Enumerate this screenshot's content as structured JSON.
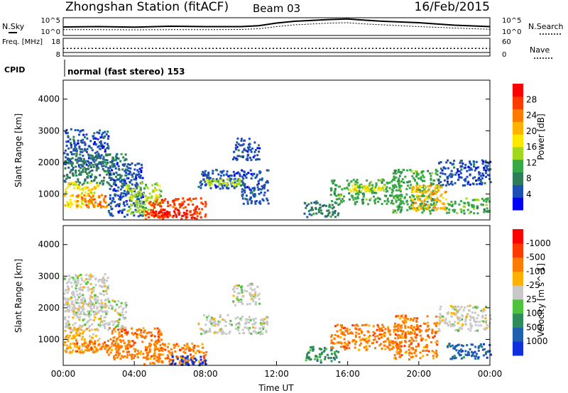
{
  "header": {
    "title": "Zhongshan Station (fitACF)",
    "beam": "Beam 03",
    "date": "16/Feb/2015",
    "cpid_label": "CPID",
    "cpid_value": "normal (fast stereo) 153"
  },
  "chart_data": [
    {
      "id": "noise",
      "type": "line",
      "left_label": "N.Sky",
      "right_label": "N.Search",
      "left_ticks": [
        "10^5",
        "10^0"
      ],
      "right_ticks": [
        "10^5",
        "10^0"
      ],
      "series": [
        {
          "name": "N.Sky",
          "x": [
            0,
            2,
            4,
            6,
            8,
            10,
            11,
            12,
            13,
            14,
            15,
            16,
            17,
            18,
            20,
            22,
            24
          ],
          "y": [
            0.48,
            0.5,
            0.47,
            0.52,
            0.5,
            0.5,
            0.55,
            0.7,
            0.8,
            0.85,
            0.9,
            0.93,
            0.86,
            0.8,
            0.72,
            0.58,
            0.5
          ]
        },
        {
          "name": "N.Search",
          "x": [
            0,
            2,
            4,
            6,
            8,
            10,
            11,
            12,
            13,
            14,
            15,
            16,
            17,
            18,
            20,
            22,
            24
          ],
          "y": [
            0.33,
            0.33,
            0.32,
            0.33,
            0.33,
            0.34,
            0.38,
            0.5,
            0.6,
            0.65,
            0.7,
            0.72,
            0.65,
            0.6,
            0.5,
            0.42,
            0.35
          ]
        }
      ]
    },
    {
      "id": "freq",
      "type": "line",
      "left_label": "Freq. [MHz]",
      "right_label": "Nave",
      "left_ticks": [
        "18",
        "8"
      ],
      "right_ticks": [
        "60",
        "0"
      ],
      "series": [
        {
          "name": "Freq.",
          "x": [
            0,
            24
          ],
          "y": [
            10,
            10
          ]
        },
        {
          "name": "Nave",
          "x": [
            0,
            24
          ],
          "y": [
            26,
            26
          ]
        }
      ]
    },
    {
      "id": "power",
      "type": "heatmap",
      "title": "",
      "xlabel": "",
      "ylabel": "Slant Range [km]",
      "xlim": [
        0,
        24
      ],
      "ylim": [
        180,
        4600
      ],
      "y_ticks": [
        "1000",
        "2000",
        "3000",
        "4000"
      ],
      "colorbar": {
        "label": "Power [dB]",
        "ticks": [
          "4",
          "8",
          "12",
          "16",
          "20",
          "24",
          "28"
        ],
        "colors": [
          "#0000ff",
          "#1e4fb4",
          "#2e7d5a",
          "#37a845",
          "#a2d81c",
          "#ffe800",
          "#ffb300",
          "#ff7a00",
          "#ff3a00",
          "#ff0000"
        ]
      },
      "regions": [
        {
          "t": [
            0.0,
            2.5
          ],
          "r": [
            1800,
            3100
          ],
          "c": 1
        },
        {
          "t": [
            0.0,
            3.5
          ],
          "r": [
            1300,
            2300
          ],
          "c": 2
        },
        {
          "t": [
            0.0,
            2.0
          ],
          "r": [
            600,
            1400
          ],
          "c": 5
        },
        {
          "t": [
            0.5,
            2.5
          ],
          "r": [
            600,
            1000
          ],
          "c": 7
        },
        {
          "t": [
            2.5,
            4.5
          ],
          "r": [
            300,
            2000
          ],
          "c": 1
        },
        {
          "t": [
            3.5,
            5.5
          ],
          "r": [
            400,
            1400
          ],
          "c": 4
        },
        {
          "t": [
            4.5,
            8.0
          ],
          "r": [
            250,
            900
          ],
          "c": 8
        },
        {
          "t": [
            5.0,
            7.0
          ],
          "r": [
            300,
            550
          ],
          "c": 9
        },
        {
          "t": [
            7.5,
            11.5
          ],
          "r": [
            1200,
            1800
          ],
          "c": 1
        },
        {
          "t": [
            8.0,
            10.0
          ],
          "r": [
            1300,
            1500
          ],
          "c": 4
        },
        {
          "t": [
            9.5,
            11.0
          ],
          "r": [
            2100,
            2800
          ],
          "c": 1
        },
        {
          "t": [
            10.0,
            11.5
          ],
          "r": [
            700,
            1300
          ],
          "c": 1
        },
        {
          "t": [
            13.5,
            15.5
          ],
          "r": [
            300,
            800
          ],
          "c": 2
        },
        {
          "t": [
            15.0,
            19.0
          ],
          "r": [
            700,
            1500
          ],
          "c": 3
        },
        {
          "t": [
            16.0,
            18.0
          ],
          "r": [
            1100,
            1300
          ],
          "c": 5
        },
        {
          "t": [
            18.5,
            21.0
          ],
          "r": [
            400,
            1800
          ],
          "c": 3
        },
        {
          "t": [
            19.5,
            21.5
          ],
          "r": [
            500,
            1300
          ],
          "c": 6
        },
        {
          "t": [
            21.0,
            24.0
          ],
          "r": [
            1300,
            2100
          ],
          "c": 1
        },
        {
          "t": [
            21.5,
            24.0
          ],
          "r": [
            400,
            900
          ],
          "c": 3
        }
      ]
    },
    {
      "id": "velocity",
      "type": "heatmap",
      "title": "",
      "xlabel": "Time UT",
      "ylabel": "Slant Range [km]",
      "xlim": [
        0,
        24
      ],
      "ylim": [
        180,
        4600
      ],
      "x_ticks": [
        "00:00",
        "04:00",
        "08:00",
        "12:00",
        "16:00",
        "20:00",
        "00:00"
      ],
      "y_ticks": [
        "1000",
        "2000",
        "3000",
        "4000"
      ],
      "colorbar": {
        "label": "Velocity [m s^-1]",
        "ticks": [
          "1000",
          "500",
          "100",
          "25",
          "-25",
          "-100",
          "-500",
          "-1000"
        ],
        "colors": [
          "#1030e0",
          "#1e5fb0",
          "#2e8c5a",
          "#4ec23c",
          "#c8c8c8",
          "#ffb000",
          "#ff7a00",
          "#ff3a00",
          "#ff0000"
        ]
      },
      "regions": [
        {
          "t": [
            0.0,
            2.5
          ],
          "r": [
            1800,
            3100
          ],
          "c": 4
        },
        {
          "t": [
            0.0,
            3.5
          ],
          "r": [
            1300,
            2300
          ],
          "c": 4
        },
        {
          "t": [
            0.0,
            2.0
          ],
          "r": [
            600,
            1400
          ],
          "c": 5
        },
        {
          "t": [
            0.5,
            3.5
          ],
          "r": [
            600,
            1000
          ],
          "c": 6
        },
        {
          "t": [
            2.5,
            5.5
          ],
          "r": [
            400,
            1400
          ],
          "c": 6
        },
        {
          "t": [
            4.5,
            8.0
          ],
          "r": [
            250,
            900
          ],
          "c": 6
        },
        {
          "t": [
            6.0,
            8.0
          ],
          "r": [
            200,
            500
          ],
          "c": 0
        },
        {
          "t": [
            7.5,
            11.5
          ],
          "r": [
            1200,
            1800
          ],
          "c": 4
        },
        {
          "t": [
            9.5,
            11.0
          ],
          "r": [
            2100,
            2800
          ],
          "c": 4
        },
        {
          "t": [
            13.5,
            15.5
          ],
          "r": [
            300,
            800
          ],
          "c": 2
        },
        {
          "t": [
            15.0,
            19.0
          ],
          "r": [
            700,
            1500
          ],
          "c": 6
        },
        {
          "t": [
            18.5,
            21.0
          ],
          "r": [
            400,
            1800
          ],
          "c": 6
        },
        {
          "t": [
            21.0,
            24.0
          ],
          "r": [
            1300,
            2100
          ],
          "c": 4
        },
        {
          "t": [
            21.5,
            24.0
          ],
          "r": [
            400,
            900
          ],
          "c": 1
        }
      ]
    }
  ]
}
